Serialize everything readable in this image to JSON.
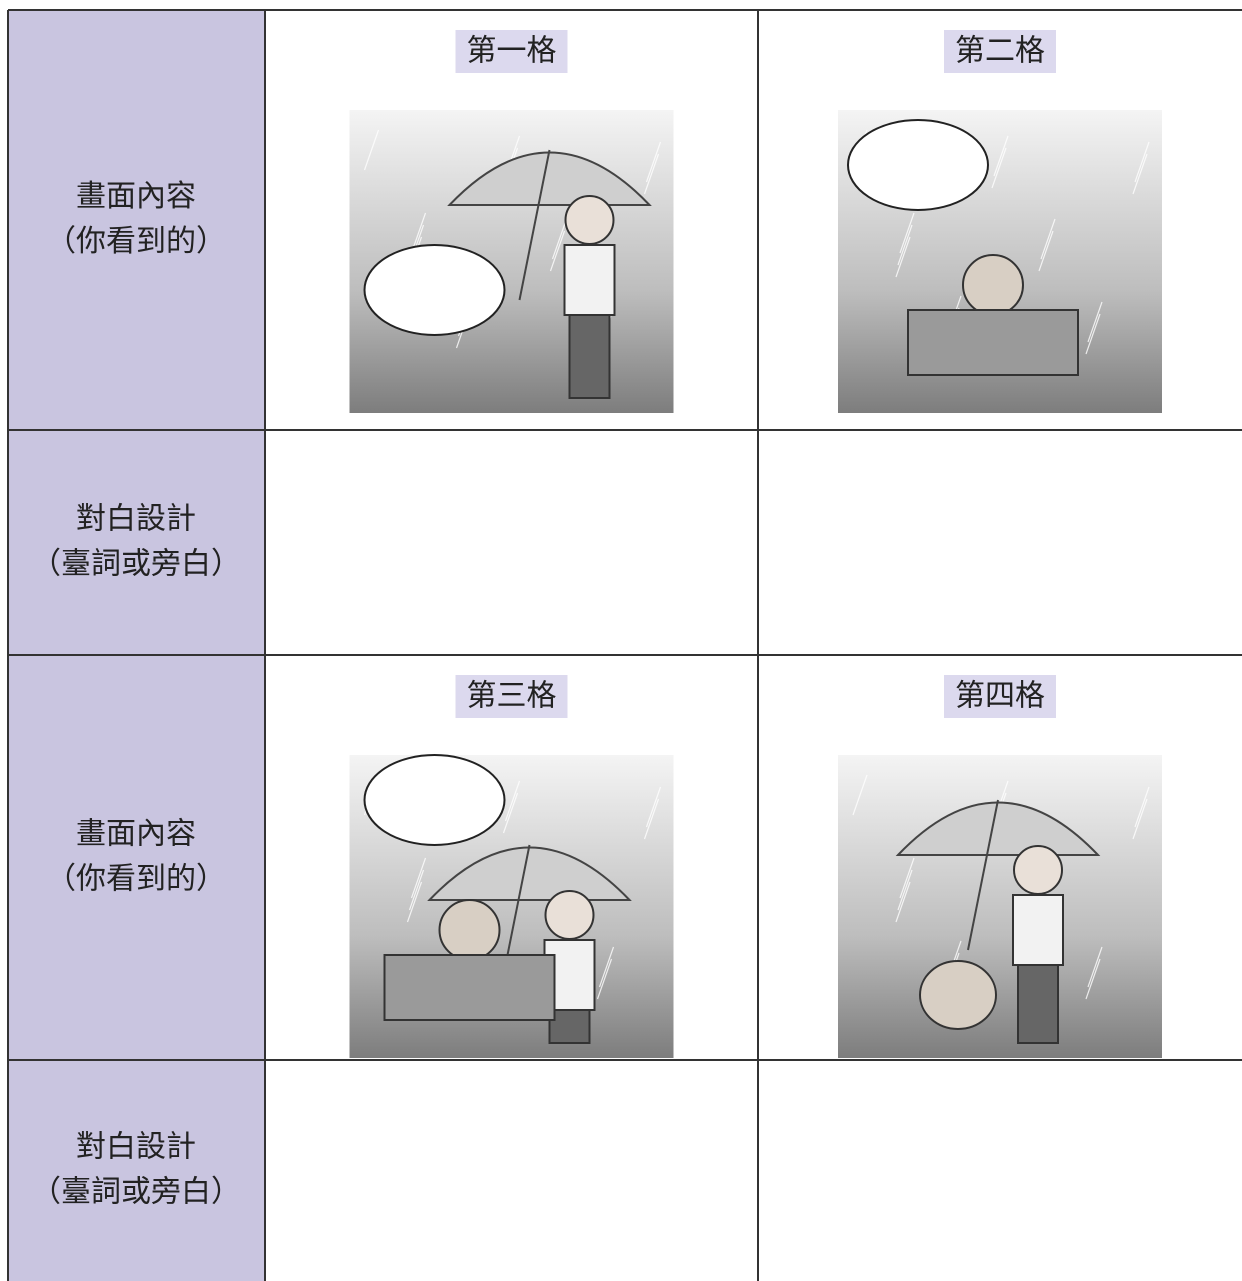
{
  "table": {
    "rows": [
      {
        "label": [
          "畫面內容",
          "（你看到的）"
        ],
        "cells": [
          "第一格",
          "第二格"
        ]
      },
      {
        "label": [
          "對白設計",
          "（臺詞或旁白）"
        ]
      },
      {
        "label": [
          "畫面內容",
          "（你看到的）"
        ],
        "cells": [
          "第三格",
          "第四格"
        ]
      },
      {
        "label": [
          "對白設計",
          "（臺詞或旁白）"
        ]
      }
    ]
  }
}
